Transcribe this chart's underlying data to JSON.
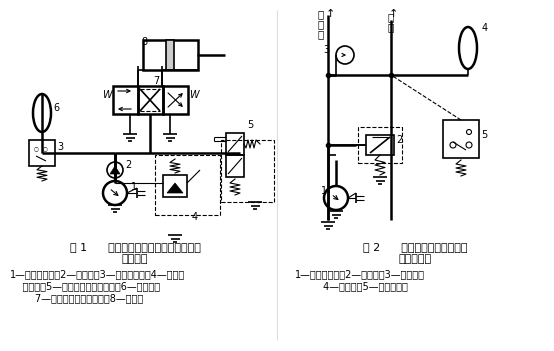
{
  "fig1_title_line1": "图 1      用压力继电器的液压泵的卸荷与",
  "fig1_title_line2": "加载回路",
  "fig1_cap1": "1—定量液压泵；2—单向阀；3—压力继电器；4—先导式",
  "fig1_cap2": "    溢流阀；5—二位二通电磁换向阀；6—蓄能器；",
  "fig1_cap3": "        7—三位四通电磁换向阀；8—液压缸",
  "fig2_title_line1": "图 2      用压力继电器控制顺序",
  "fig2_title_line2": "动作的回路",
  "fig2_cap1": "1—定量液压泵；2—溢流阀；3—单向阀；",
  "fig2_cap2": "         4—蓄能器；5—压力继电器",
  "bg_color": "#ffffff",
  "line_color": "#000000",
  "text_color": "#000000",
  "font_size_small": 7.0,
  "font_size_title": 8.0
}
